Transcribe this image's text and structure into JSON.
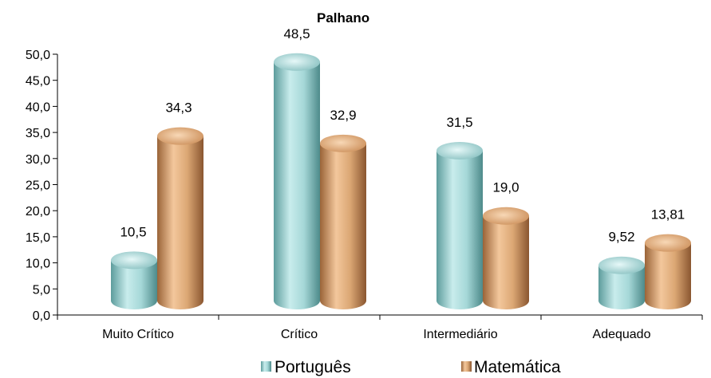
{
  "chart_data": {
    "type": "bar",
    "title": "Palhano",
    "categories": [
      "Muito Crítico",
      "Crítico",
      "Intermediário",
      "Adequado"
    ],
    "series": [
      {
        "name": "Português",
        "values": [
          10.5,
          48.5,
          31.5,
          9.52
        ],
        "labels": [
          "10,5",
          "48,5",
          "31,5",
          "9,52"
        ],
        "color": "#8fc9c9"
      },
      {
        "name": "Matemática",
        "values": [
          34.3,
          32.9,
          19.0,
          13.81
        ],
        "labels": [
          "34,3",
          "32,9",
          "19,0",
          "13,81"
        ],
        "color": "#d9a070"
      }
    ],
    "ylim": [
      0,
      50
    ],
    "yticks": [
      "0,0",
      "5,0",
      "10,0",
      "15,0",
      "20,0",
      "25,0",
      "30,0",
      "35,0",
      "40,0",
      "45,0",
      "50,0"
    ],
    "xlabel": "",
    "ylabel": "",
    "grid": false,
    "legend_position": "bottom",
    "style": "3d-cylinder"
  }
}
